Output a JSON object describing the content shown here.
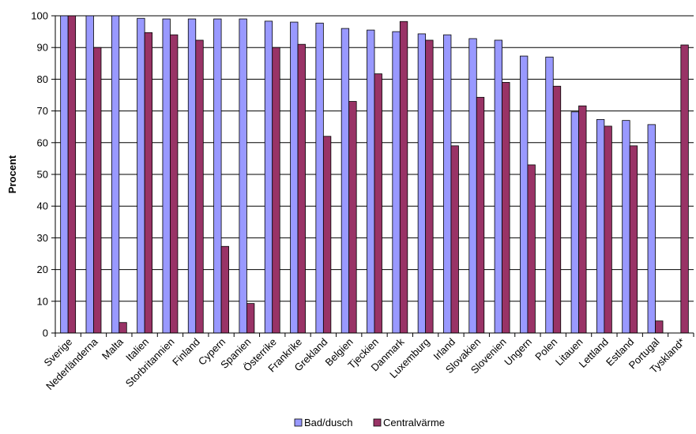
{
  "chart_data": {
    "type": "bar",
    "title": "",
    "xlabel": "",
    "ylabel": "Procent",
    "ylim": [
      0,
      100
    ],
    "yticks": [
      0,
      10,
      20,
      30,
      40,
      50,
      60,
      70,
      80,
      90,
      100
    ],
    "grid": true,
    "legend_position": "bottom",
    "categories": [
      "Sverige",
      "Nederländerna",
      "Malta",
      "Italien",
      "Storbritannien",
      "Finland",
      "Cypern",
      "Spanien",
      "Österrike",
      "Frankrike",
      "Grekland",
      "Belgien",
      "Tjeckien",
      "Danmark",
      "Luxemburg",
      "Irland",
      "Slovakien",
      "Slovenien",
      "Ungern",
      "Polen",
      "Litauen",
      "Lettland",
      "Estland",
      "Portugal",
      "Tyskland*"
    ],
    "series": [
      {
        "name": "Bad/dusch",
        "color": "#9999ff",
        "values": [
          100,
          100,
          100,
          99.2,
          99,
          99,
          99,
          99,
          98.3,
          98,
          97.7,
          96,
          95.5,
          95,
          94.3,
          94,
          92.8,
          92.3,
          87.3,
          87,
          69.7,
          67.3,
          67,
          65.7,
          null
        ]
      },
      {
        "name": "Centralvärme",
        "color": "#993366",
        "values": [
          100,
          90,
          3.3,
          94.7,
          94,
          92.3,
          27.3,
          9.3,
          90,
          91,
          62,
          73,
          81.7,
          98.2,
          92.3,
          59,
          74.3,
          79,
          53,
          77.8,
          71.6,
          65.2,
          59,
          3.8,
          90.8
        ]
      }
    ]
  }
}
